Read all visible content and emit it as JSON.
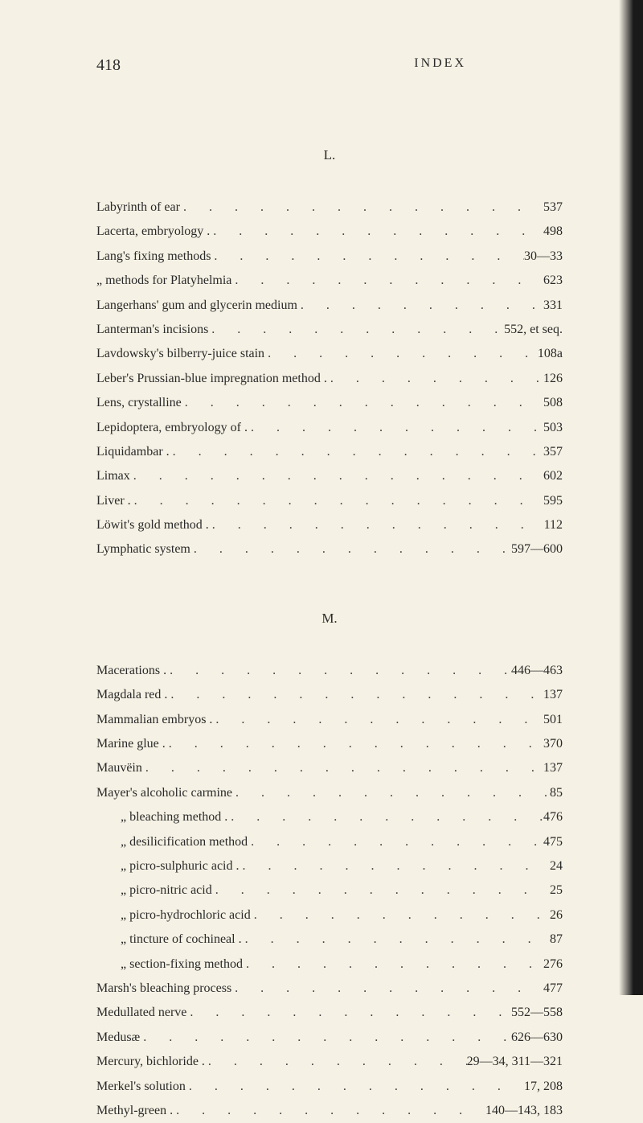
{
  "header": {
    "page_number": "418",
    "running_head": "INDEX"
  },
  "sections": [
    {
      "letter": "L.",
      "entries": [
        {
          "label": "Labyrinth of ear",
          "page": "537",
          "indent": 0
        },
        {
          "label": "Lacerta, embryology .",
          "page": "498",
          "indent": 0
        },
        {
          "label": "Lang's fixing methods",
          "page": "30—33",
          "indent": 0
        },
        {
          "label": "„    methods for Platyhelmia",
          "page": "623",
          "indent": 0
        },
        {
          "label": "Langerhans' gum and glycerin medium",
          "page": "331",
          "indent": 0
        },
        {
          "label": "Lanterman's incisions",
          "page": "552, et seq.",
          "indent": 0
        },
        {
          "label": "Lavdowsky's bilberry-juice stain",
          "page": "108a",
          "indent": 0
        },
        {
          "label": "Leber's Prussian-blue impregnation method .",
          "page": "126",
          "indent": 0
        },
        {
          "label": "Lens, crystalline",
          "page": "508",
          "indent": 0
        },
        {
          "label": "Lepidoptera, embryology of .",
          "page": "503",
          "indent": 0
        },
        {
          "label": "Liquidambar .",
          "page": "357",
          "indent": 0
        },
        {
          "label": "Limax",
          "page": "602",
          "indent": 0
        },
        {
          "label": "Liver .",
          "page": "595",
          "indent": 0
        },
        {
          "label": "Löwit's gold method .",
          "page": "112",
          "indent": 0
        },
        {
          "label": "Lymphatic system",
          "page": "597—600",
          "indent": 0
        }
      ]
    },
    {
      "letter": "M.",
      "entries": [
        {
          "label": "Macerations .",
          "page": "446—463",
          "indent": 0
        },
        {
          "label": "Magdala red .",
          "page": "137",
          "indent": 0
        },
        {
          "label": "Mammalian embryos .",
          "page": "501",
          "indent": 0
        },
        {
          "label": "Marine glue .",
          "page": "370",
          "indent": 0
        },
        {
          "label": "Mauvëin",
          "page": "137",
          "indent": 0
        },
        {
          "label": "Mayer's alcoholic carmine",
          "page": "85",
          "indent": 0
        },
        {
          "label": "„    bleaching method .",
          "page": "476",
          "indent": 1
        },
        {
          "label": "„    desilicification method",
          "page": "475",
          "indent": 1
        },
        {
          "label": "„    picro-sulphuric acid .",
          "page": "24",
          "indent": 1
        },
        {
          "label": "„    picro-nitric acid",
          "page": "25",
          "indent": 1
        },
        {
          "label": "„    picro-hydrochloric acid",
          "page": "26",
          "indent": 1
        },
        {
          "label": "„    tincture of cochineal .",
          "page": "87",
          "indent": 1
        },
        {
          "label": "„    section-fixing method",
          "page": "276",
          "indent": 1
        },
        {
          "label": "Marsh's bleaching process",
          "page": "477",
          "indent": 0
        },
        {
          "label": "Medullated nerve",
          "page": "552—558",
          "indent": 0
        },
        {
          "label": "Medusæ",
          "page": "626—630",
          "indent": 0
        },
        {
          "label": "Mercury, bichloride .",
          "page": "29—34, 311—321",
          "indent": 0
        },
        {
          "label": "Merkel's solution",
          "page": "17, 208",
          "indent": 0
        },
        {
          "label": "Methyl-green .",
          "page": "140—143, 183",
          "indent": 0
        }
      ]
    }
  ],
  "colors": {
    "background": "#f5f1e4",
    "text": "#2a2a2a"
  }
}
